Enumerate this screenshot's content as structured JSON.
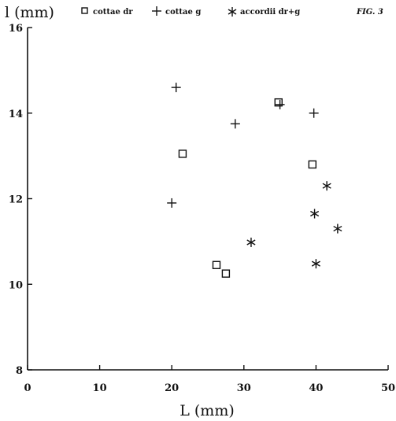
{
  "figure_label": "FIG. 3",
  "chart_data": {
    "type": "scatter",
    "xlabel": "L (mm)",
    "ylabel": "l (mm)",
    "xlim": [
      0,
      50
    ],
    "ylim": [
      8,
      16
    ],
    "x_ticks": [
      0,
      10,
      20,
      30,
      40,
      50
    ],
    "y_ticks": [
      8,
      10,
      12,
      14,
      16
    ],
    "legend_position": "top",
    "grid": false,
    "series": [
      {
        "name": "cottae dr",
        "marker": "square",
        "points": [
          [
            21.5,
            13.05
          ],
          [
            26.2,
            10.45
          ],
          [
            27.5,
            10.25
          ],
          [
            34.8,
            14.25
          ],
          [
            39.5,
            12.8
          ]
        ]
      },
      {
        "name": "cottae g",
        "marker": "plus",
        "points": [
          [
            20.0,
            11.9
          ],
          [
            20.6,
            14.6
          ],
          [
            28.8,
            13.75
          ],
          [
            35.0,
            14.2
          ],
          [
            39.7,
            14.0
          ]
        ]
      },
      {
        "name": "accordii dr+g",
        "marker": "asterisk",
        "points": [
          [
            31.0,
            10.98
          ],
          [
            39.8,
            11.65
          ],
          [
            40.0,
            10.48
          ],
          [
            41.5,
            12.3
          ],
          [
            43.0,
            11.3
          ]
        ]
      }
    ]
  }
}
